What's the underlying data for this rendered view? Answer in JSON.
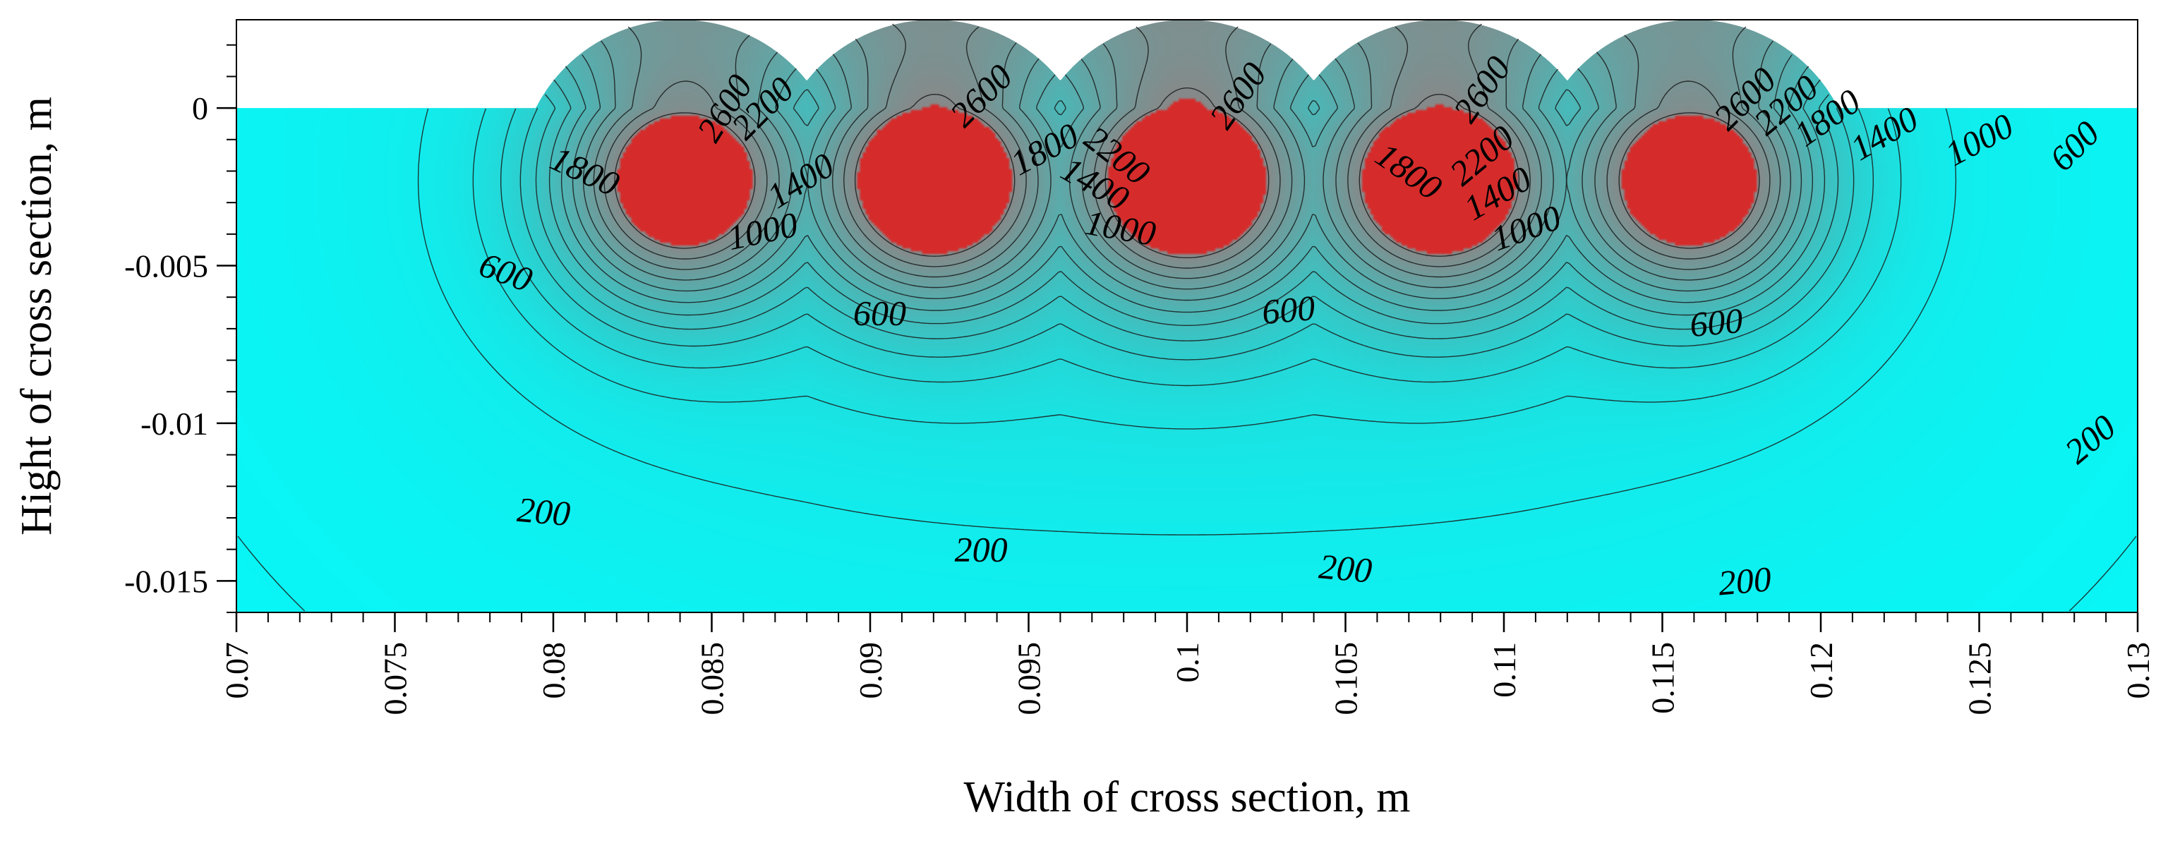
{
  "chart_data": {
    "type": "heatmap",
    "title": "",
    "xlabel": "Width of cross section, m",
    "ylabel": "Hight of cross section, m",
    "xlim": [
      0.07,
      0.13
    ],
    "ylim": [
      -0.016,
      0.0028
    ],
    "x_ticks": [
      {
        "value": 0.07,
        "label": "0.07"
      },
      {
        "value": 0.075,
        "label": "0.075"
      },
      {
        "value": 0.08,
        "label": "0.08"
      },
      {
        "value": 0.085,
        "label": "0.085"
      },
      {
        "value": 0.09,
        "label": "0.09"
      },
      {
        "value": 0.095,
        "label": "0.095"
      },
      {
        "value": 0.1,
        "label": "0.1"
      },
      {
        "value": 0.105,
        "label": "0.105"
      },
      {
        "value": 0.11,
        "label": "0.11"
      },
      {
        "value": 0.115,
        "label": "0.115"
      },
      {
        "value": 0.12,
        "label": "0.12"
      },
      {
        "value": 0.125,
        "label": "0.125"
      },
      {
        "value": 0.13,
        "label": "0.13"
      }
    ],
    "y_ticks": [
      {
        "value": 0,
        "label": "0"
      },
      {
        "value": -0.005,
        "label": "-0.005"
      },
      {
        "value": -0.01,
        "label": "-0.01"
      },
      {
        "value": -0.015,
        "label": "-0.015"
      }
    ],
    "heat_sources": [
      {
        "x": 0.084,
        "y": -0.0023
      },
      {
        "x": 0.092,
        "y": -0.0023
      },
      {
        "x": 0.1,
        "y": -0.0023
      },
      {
        "x": 0.108,
        "y": -0.0023
      },
      {
        "x": 0.116,
        "y": -0.0023
      }
    ],
    "bead_radius": 0.0051,
    "contour_levels": [
      200,
      400,
      600,
      800,
      1000,
      1200,
      1400,
      1600,
      1800,
      2000,
      2200,
      2400,
      2600
    ],
    "colors": {
      "cold": "#00ffff",
      "warm": "#2dcfcf",
      "hot": "#888888",
      "molten": "#d62b2b",
      "contour_line": "#1a1a1a"
    },
    "contour_labels": [
      {
        "text": "2600",
        "x": 0.0854,
        "y": -0.0,
        "angle": -58
      },
      {
        "text": "2200",
        "x": 0.0866,
        "y": -0.0,
        "angle": -45
      },
      {
        "text": "1800",
        "x": 0.081,
        "y": -0.002,
        "angle": 25
      },
      {
        "text": "1400",
        "x": 0.0878,
        "y": -0.0023,
        "angle": -32
      },
      {
        "text": "1000",
        "x": 0.0866,
        "y": -0.0039,
        "angle": -12
      },
      {
        "text": "600",
        "x": 0.0785,
        "y": -0.0052,
        "angle": 20
      },
      {
        "text": "600",
        "x": 0.0903,
        "y": -0.0065,
        "angle": 0
      },
      {
        "text": "200",
        "x": 0.0797,
        "y": -0.0128,
        "angle": 5
      },
      {
        "text": "200",
        "x": 0.0935,
        "y": -0.014,
        "angle": 0
      },
      {
        "text": "2600",
        "x": 0.0935,
        "y": 0.0004,
        "angle": -45
      },
      {
        "text": "1800",
        "x": 0.0955,
        "y": -0.0013,
        "angle": -28
      },
      {
        "text": "2200",
        "x": 0.0978,
        "y": -0.0015,
        "angle": 38
      },
      {
        "text": "1400",
        "x": 0.0971,
        "y": -0.0024,
        "angle": 30
      },
      {
        "text": "1000",
        "x": 0.0979,
        "y": -0.0038,
        "angle": 10
      },
      {
        "text": "2600",
        "x": 0.1016,
        "y": 0.0004,
        "angle": -55
      },
      {
        "text": "600",
        "x": 0.1032,
        "y": -0.0064,
        "angle": -5
      },
      {
        "text": "200",
        "x": 0.105,
        "y": -0.0146,
        "angle": 5
      },
      {
        "text": "1800",
        "x": 0.107,
        "y": -0.002,
        "angle": 35
      },
      {
        "text": "2600",
        "x": 0.1093,
        "y": 0.0006,
        "angle": -55
      },
      {
        "text": "2200",
        "x": 0.1093,
        "y": -0.0015,
        "angle": -40
      },
      {
        "text": "1400",
        "x": 0.1098,
        "y": -0.0027,
        "angle": -30
      },
      {
        "text": "1000",
        "x": 0.1107,
        "y": -0.0038,
        "angle": -20
      },
      {
        "text": "600",
        "x": 0.1167,
        "y": -0.0068,
        "angle": -5
      },
      {
        "text": "200",
        "x": 0.1176,
        "y": -0.015,
        "angle": -5
      },
      {
        "text": "2600",
        "x": 0.1176,
        "y": 0.0003,
        "angle": -45
      },
      {
        "text": "2200",
        "x": 0.1189,
        "y": 0.0001,
        "angle": -40
      },
      {
        "text": "1800",
        "x": 0.1202,
        "y": -0.0003,
        "angle": -35
      },
      {
        "text": "1400",
        "x": 0.122,
        "y": -0.0008,
        "angle": -30
      },
      {
        "text": "1000",
        "x": 0.125,
        "y": -0.001,
        "angle": -28
      },
      {
        "text": "600",
        "x": 0.128,
        "y": -0.0012,
        "angle": -45
      },
      {
        "text": "200",
        "x": 0.1285,
        "y": -0.0105,
        "angle": -40
      }
    ]
  }
}
